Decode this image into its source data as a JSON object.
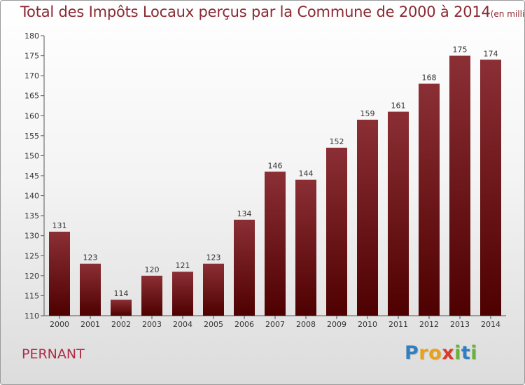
{
  "title": "Total des Impôts Locaux perçus par la Commune de 2000 à 2014",
  "title_unit": "(en milliers d'€)",
  "commune": "PERNANT",
  "logo": {
    "letters": [
      {
        "ch": "P",
        "color": "#2f7fc1"
      },
      {
        "ch": "r",
        "color": "#e8a21a"
      },
      {
        "ch": "o",
        "color": "#e8a21a"
      },
      {
        "ch": "x",
        "color": "#d83a2c"
      },
      {
        "ch": "i",
        "color": "#6ab03c"
      },
      {
        "ch": "t",
        "color": "#2f7fc1"
      },
      {
        "ch": "i",
        "color": "#6ab03c"
      }
    ]
  },
  "chart_data": {
    "type": "bar",
    "categories": [
      "2000",
      "2001",
      "2002",
      "2003",
      "2004",
      "2005",
      "2006",
      "2007",
      "2008",
      "2009",
      "2010",
      "2011",
      "2012",
      "2013",
      "2014"
    ],
    "values": [
      131,
      123,
      114,
      120,
      121,
      123,
      134,
      146,
      144,
      152,
      159,
      161,
      168,
      175,
      174
    ],
    "ylim": [
      110,
      180
    ],
    "yticks": [
      110,
      115,
      120,
      125,
      130,
      135,
      140,
      145,
      150,
      155,
      160,
      165,
      170,
      175,
      180
    ],
    "bar_color_top": "#8b2f35",
    "bar_color_bottom": "#4e0000",
    "grid": false
  }
}
